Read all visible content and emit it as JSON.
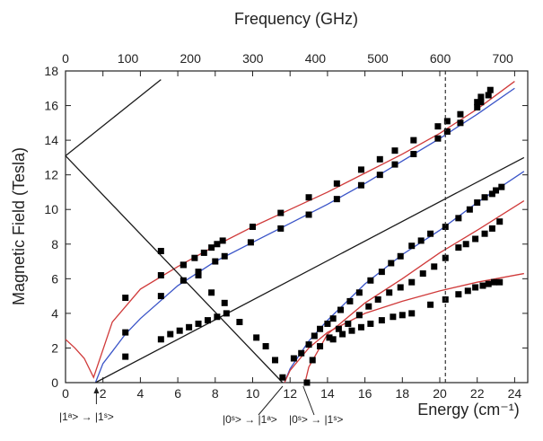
{
  "chart_data": {
    "type": "scatter",
    "title": "",
    "xlabel": "Energy (cm⁻¹)",
    "ylabel": "Magnetic Field (Tesla)",
    "x2label": "Frequency (GHz)",
    "xlim": [
      0,
      24.7
    ],
    "ylim": [
      0,
      18
    ],
    "x2lim": [
      0,
      740
    ],
    "xticks": [
      "0",
      "2",
      "4",
      "6",
      "8",
      "10",
      "12",
      "14",
      "16",
      "18",
      "20",
      "22",
      "24"
    ],
    "yticks": [
      "0",
      "2",
      "4",
      "6",
      "8",
      "10",
      "12",
      "14",
      "16",
      "18"
    ],
    "x2ticks": [
      "0",
      "100",
      "200",
      "300",
      "400",
      "500",
      "600",
      "700"
    ],
    "grid": false,
    "legend": "none",
    "reference_line": {
      "x": 20.3,
      "style": "dashed"
    },
    "annotations": [
      {
        "text": "|1ᵃ> → |1ˢ>",
        "x": 1.65
      },
      {
        "text": "|0ˢ> → |1ᵃ>",
        "x": 11.7
      },
      {
        "text": "|0ˢ> → |1ˢ>",
        "x": 12.7
      }
    ],
    "series": [
      {
        "kind": "points",
        "color": "#000000",
        "x": [
          5.1,
          6.3,
          7.1,
          7.8,
          8.5,
          9.3,
          10.2,
          10.7,
          11.2,
          11.6
        ],
        "y": [
          7.6,
          6.8,
          6.2,
          5.2,
          4.6,
          3.5,
          2.6,
          2.1,
          1.3,
          0.3
        ]
      },
      {
        "kind": "points",
        "color": "#000000",
        "x": [
          3.2,
          5.1,
          6.3,
          6.9,
          7.4,
          7.8,
          8.1,
          8.4,
          10.0,
          11.5,
          13.0,
          14.5,
          15.8,
          16.8,
          17.6,
          18.6,
          19.9,
          20.4,
          21.1,
          22.0,
          22.2,
          22.7
        ],
        "y": [
          4.9,
          6.2,
          6.8,
          7.2,
          7.5,
          7.8,
          8.0,
          8.2,
          9.0,
          9.8,
          10.7,
          11.5,
          12.3,
          12.9,
          13.4,
          14.0,
          14.8,
          15.1,
          15.5,
          16.2,
          16.5,
          16.9
        ]
      },
      {
        "kind": "points",
        "color": "#000000",
        "x": [
          3.2,
          5.1,
          6.3,
          7.1,
          8.0,
          8.5,
          9.9,
          11.5,
          13.0,
          14.5,
          15.8,
          16.8,
          17.6,
          18.6,
          19.9,
          20.4,
          21.1,
          22.0,
          22.2,
          22.6
        ],
        "y": [
          2.9,
          5.0,
          5.9,
          6.4,
          7.0,
          7.3,
          8.1,
          8.9,
          9.7,
          10.6,
          11.4,
          12.0,
          12.6,
          13.2,
          14.1,
          14.5,
          15.0,
          15.9,
          16.2,
          16.6
        ]
      },
      {
        "kind": "points",
        "color": "#000000",
        "x": [
          3.2,
          5.1,
          5.6,
          6.1,
          6.6,
          7.1,
          7.6,
          8.1,
          8.6
        ],
        "y": [
          1.5,
          2.5,
          2.8,
          3.0,
          3.2,
          3.4,
          3.6,
          3.8,
          4.0
        ]
      },
      {
        "kind": "points",
        "color": "#000000",
        "x": [
          12.2,
          12.6,
          13.0,
          13.3,
          13.6,
          14.0,
          14.3,
          14.7,
          15.2,
          15.7,
          16.3,
          16.9,
          17.4,
          17.9,
          18.5,
          19.0,
          19.5,
          20.3,
          21.0,
          21.6,
          22.0,
          22.4,
          22.8,
          23.0,
          23.3
        ],
        "y": [
          1.4,
          1.7,
          2.2,
          2.7,
          3.1,
          3.4,
          3.7,
          4.2,
          4.7,
          5.2,
          5.9,
          6.4,
          6.9,
          7.3,
          7.9,
          8.2,
          8.6,
          9.0,
          9.5,
          10.0,
          10.4,
          10.7,
          10.9,
          11.1,
          11.3
        ]
      },
      {
        "kind": "points",
        "color": "#000000",
        "x": [
          12.9,
          13.2,
          13.6,
          14.1,
          14.6,
          15.1,
          15.7,
          16.2,
          16.7,
          17.3,
          17.9,
          18.5,
          19.1,
          19.7,
          20.3,
          21.0,
          21.4,
          21.9,
          22.4,
          22.8,
          23.2
        ],
        "y": [
          0.0,
          1.3,
          2.1,
          2.6,
          3.1,
          3.4,
          3.9,
          4.4,
          4.8,
          5.2,
          5.5,
          5.8,
          6.3,
          6.7,
          7.2,
          7.8,
          8.0,
          8.3,
          8.6,
          8.9,
          9.3
        ]
      },
      {
        "kind": "points",
        "color": "#000000",
        "x": [
          14.3,
          14.8,
          15.3,
          15.8,
          16.3,
          16.9,
          17.5,
          18.0,
          18.5,
          19.5,
          20.3,
          21.0,
          21.5,
          21.9,
          22.3,
          22.6,
          22.9,
          23.2
        ],
        "y": [
          2.5,
          2.8,
          3.0,
          3.2,
          3.4,
          3.6,
          3.8,
          3.9,
          4.0,
          4.5,
          4.8,
          5.1,
          5.3,
          5.5,
          5.6,
          5.7,
          5.8,
          5.8
        ]
      },
      {
        "kind": "curve",
        "color": "#d03a3a",
        "x": [
          0,
          0.5,
          1.0,
          1.5,
          2.5,
          4,
          6,
          8,
          10,
          12,
          14,
          16,
          18,
          20,
          22,
          24
        ],
        "y": [
          2.5,
          2.0,
          1.4,
          0.3,
          3.5,
          5.4,
          6.7,
          7.9,
          9.0,
          10.0,
          11.0,
          12.1,
          13.2,
          14.4,
          15.8,
          17.4
        ]
      },
      {
        "kind": "curve",
        "color": "#3a54c8",
        "x": [
          1.6,
          2.0,
          2.5,
          3.2,
          4,
          6,
          8,
          10,
          12,
          14,
          16,
          18,
          20,
          22,
          24
        ],
        "y": [
          0.0,
          1.1,
          1.8,
          2.8,
          3.7,
          5.6,
          7.0,
          8.1,
          9.2,
          10.3,
          11.5,
          12.8,
          14.1,
          15.5,
          17.0
        ]
      },
      {
        "kind": "curve",
        "color": "#1a1a1a",
        "x": [
          1.6,
          24.5
        ],
        "y": [
          0.0,
          13.0
        ]
      },
      {
        "kind": "curve",
        "color": "#1a1a1a",
        "x": [
          0,
          11.6
        ],
        "y": [
          13.1,
          0.0
        ]
      },
      {
        "kind": "curve",
        "color": "#1a1a1a",
        "x": [
          0,
          5.1
        ],
        "y": [
          13.1,
          17.5
        ]
      },
      {
        "kind": "curve",
        "color": "#3a54c8",
        "x": [
          11.7,
          12,
          13,
          14,
          16,
          18,
          20,
          22,
          24.5
        ],
        "y": [
          0.0,
          0.8,
          2.4,
          3.6,
          5.7,
          7.4,
          8.8,
          10.4,
          12.2
        ]
      },
      {
        "kind": "curve",
        "color": "#d03a3a",
        "x": [
          11.7,
          12,
          13,
          14,
          16,
          18,
          20,
          22,
          24.5
        ],
        "y": [
          0.0,
          0.7,
          2.0,
          2.9,
          4.0,
          4.7,
          5.3,
          5.8,
          6.3
        ]
      },
      {
        "kind": "curve",
        "color": "#d03a3a",
        "x": [
          12.8,
          13.0,
          14,
          16,
          18,
          20,
          22,
          24.5
        ],
        "y": [
          0.0,
          0.9,
          2.8,
          4.6,
          6.0,
          7.5,
          8.8,
          10.5
        ]
      }
    ]
  }
}
